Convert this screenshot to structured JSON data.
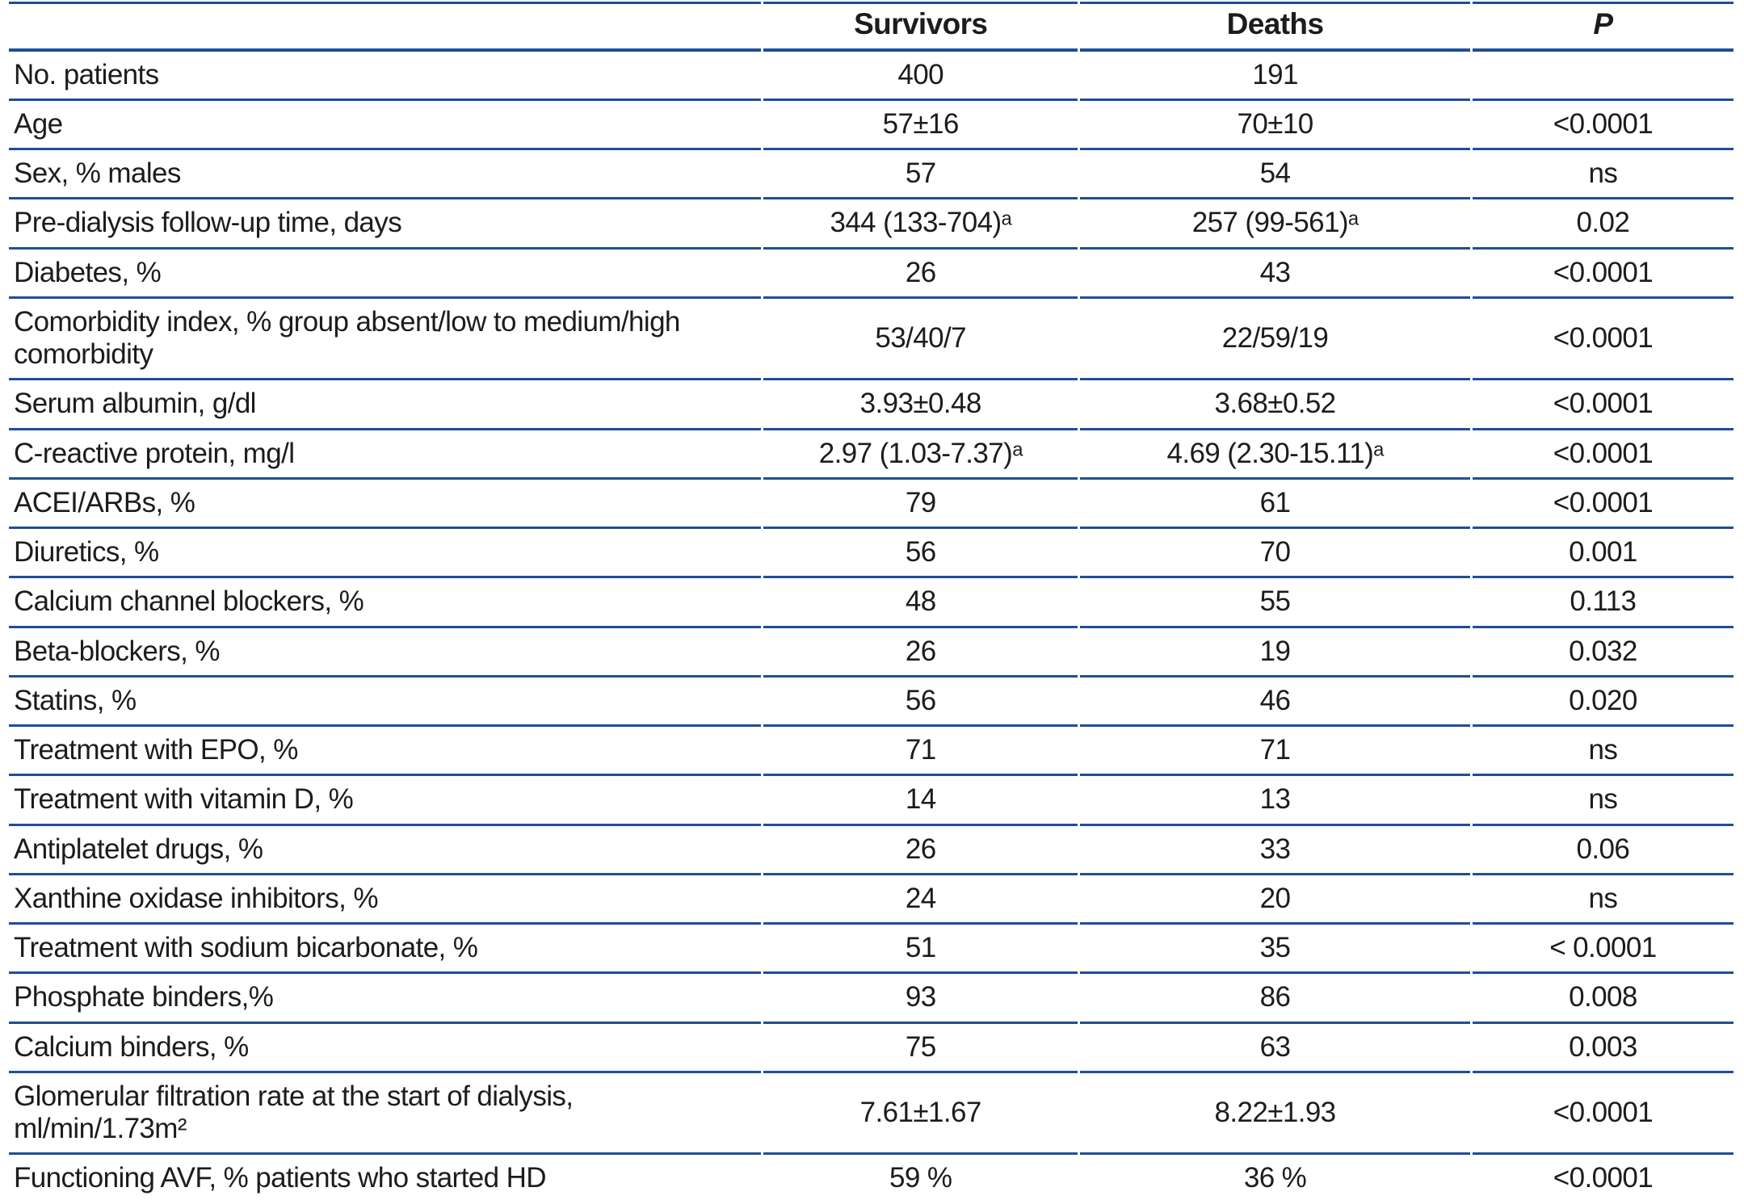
{
  "colors": {
    "line": "#1f4e96",
    "text": "#1c1c1c",
    "background": "#ffffff"
  },
  "table": {
    "columns": [
      "",
      "Survivors",
      "Deaths",
      "P"
    ],
    "rows": [
      {
        "label": "No. patients",
        "survivors": "400",
        "deaths": "191",
        "p": ""
      },
      {
        "label": "Age",
        "survivors": "57±16",
        "deaths": "70±10",
        "p": "<0.0001"
      },
      {
        "label": "Sex, % males",
        "survivors": "57",
        "deaths": "54",
        "p": "ns"
      },
      {
        "label": "Pre-dialysis follow-up time, days",
        "survivors": "344 (133-704)ᵃ",
        "deaths": "257 (99-561)ᵃ",
        "p": "0.02"
      },
      {
        "label": "Diabetes, %",
        "survivors": "26",
        "deaths": "43",
        "p": "<0.0001"
      },
      {
        "label": "Comorbidity index, % group absent/low to medium/high\ncomorbidity",
        "survivors": "53/40/7",
        "deaths": "22/59/19",
        "p": "<0.0001"
      },
      {
        "label": "Serum albumin, g/dl",
        "survivors": "3.93±0.48",
        "deaths": "3.68±0.52",
        "p": "<0.0001"
      },
      {
        "label": "C-reactive protein, mg/l",
        "survivors": "2.97 (1.03-7.37)ᵃ",
        "deaths": "4.69 (2.30-15.11)ᵃ",
        "p": "<0.0001"
      },
      {
        "label": "ACEI/ARBs, %",
        "survivors": "79",
        "deaths": "61",
        "p": "<0.0001"
      },
      {
        "label": "Diuretics, %",
        "survivors": "56",
        "deaths": "70",
        "p": "0.001"
      },
      {
        "label": "Calcium channel blockers, %",
        "survivors": "48",
        "deaths": "55",
        "p": "0.113"
      },
      {
        "label": "Beta-blockers, %",
        "survivors": "26",
        "deaths": "19",
        "p": "0.032"
      },
      {
        "label": "Statins, %",
        "survivors": "56",
        "deaths": "46",
        "p": "0.020"
      },
      {
        "label": "Treatment with EPO, %",
        "survivors": "71",
        "deaths": "71",
        "p": "ns"
      },
      {
        "label": "Treatment with vitamin D, %",
        "survivors": "14",
        "deaths": "13",
        "p": "ns"
      },
      {
        "label": "Antiplatelet drugs, %",
        "survivors": "26",
        "deaths": "33",
        "p": "0.06"
      },
      {
        "label": "Xanthine oxidase inhibitors, %",
        "survivors": "24",
        "deaths": "20",
        "p": "ns"
      },
      {
        "label": "Treatment with sodium bicarbonate, %",
        "survivors": "51",
        "deaths": "35",
        "p": "< 0.0001"
      },
      {
        "label": "Phosphate binders,%",
        "survivors": "93",
        "deaths": "86",
        "p": "0.008"
      },
      {
        "label": "Calcium binders, %",
        "survivors": "75",
        "deaths": "63",
        "p": "0.003"
      },
      {
        "label": "Glomerular filtration rate at the start of dialysis,\nml/min/1.73m²",
        "survivors": "7.61±1.67",
        "deaths": "8.22±1.93",
        "p": "<0.0001"
      },
      {
        "label": "Functioning AVF, % patients who started HD",
        "survivors": "59 %",
        "deaths": "36 %",
        "p": "<0.0001"
      }
    ]
  }
}
